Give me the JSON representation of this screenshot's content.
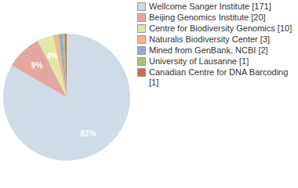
{
  "chart_data": {
    "type": "pie",
    "categories": [
      "Wellcome Sanger Institute [171]",
      "Beijing Genomics Institute [20]",
      "Centre for Biodiversity Genomics [10]",
      "Naturalis Biodiversity Center [3]",
      "Mined from GenBank, NCBI [2]",
      "University of Lausanne [1]",
      "Canadian Centre for DNA Barcoding [1]"
    ],
    "values": [
      82,
      9,
      4,
      1.4,
      1,
      0.5,
      0.5
    ],
    "colors": [
      "#cfdbe7",
      "#e2a89f",
      "#e1e7a9",
      "#efb987",
      "#93accb",
      "#a9c56f",
      "#d3694f"
    ],
    "data_labels": true,
    "value_labels": [
      "82%",
      "9%",
      "4%",
      null,
      null,
      null,
      null
    ],
    "legend": "upper right"
  }
}
